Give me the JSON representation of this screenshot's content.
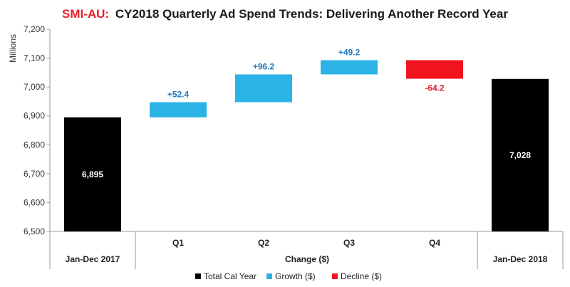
{
  "title": {
    "prefix": "SMI-AU:",
    "main": "CY2018 Quarterly Ad Spend Trends: Delivering Another Record Year"
  },
  "colors": {
    "total": "#000000",
    "growth": "#2bb3e6",
    "decline": "#f0141e",
    "growth_label": "#1f7bbf",
    "decline_label": "#e01e26"
  },
  "chart_data": {
    "type": "bar",
    "subtype": "waterfall",
    "title": "SMI-AU: CY2018 Quarterly Ad Spend Trends: Delivering Another Record Year",
    "ylabel": "Millions",
    "xlabel": "Change ($)",
    "ylim": [
      6500,
      7200
    ],
    "yticks": [
      "6,500",
      "6,600",
      "6,700",
      "6,800",
      "6,900",
      "7,000",
      "7,100",
      "7,200"
    ],
    "ytick_values": [
      6500,
      6600,
      6700,
      6800,
      6900,
      7000,
      7100,
      7200
    ],
    "grid": false,
    "legend_position": "bottom",
    "legend": [
      "Total Cal Year",
      "Growth ($)",
      "Decline ($)"
    ],
    "bars": [
      {
        "category": "Jan-Dec 2017",
        "kind": "total",
        "start": 6500,
        "end": 6895,
        "label": "6,895"
      },
      {
        "category": "Q1",
        "kind": "growth",
        "start": 6895,
        "end": 6947.4,
        "label": "+52.4"
      },
      {
        "category": "Q2",
        "kind": "growth",
        "start": 6947.4,
        "end": 7043.6,
        "label": "+96.2"
      },
      {
        "category": "Q3",
        "kind": "growth",
        "start": 7043.6,
        "end": 7092.8,
        "label": "+49.2"
      },
      {
        "category": "Q4",
        "kind": "decline",
        "start": 7092.8,
        "end": 7028.6,
        "label": "-64.2"
      },
      {
        "category": "Jan-Dec 2018",
        "kind": "total",
        "start": 6500,
        "end": 7028,
        "label": "7,028"
      }
    ]
  }
}
